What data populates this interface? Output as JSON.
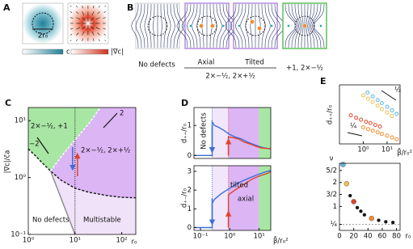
{
  "panel_labels": [
    "A",
    "B",
    "C",
    "D",
    "E"
  ],
  "diagram": {
    "a": {
      "scale_label": "2r₀",
      "colorbar_labels": [
        "c",
        "|∇c|"
      ]
    },
    "b": {
      "labels": [
        "No defects",
        "Axial",
        "Tilted"
      ],
      "group_label": "2×−½, 2×+½",
      "green_label": "+1, 2×−½"
    }
  },
  "chart_data": [
    {
      "type": "line",
      "xscale": "log",
      "yscale": "log",
      "xlim": [
        1,
        200
      ],
      "ylim": [
        0.1,
        17
      ],
      "xticks": [
        {
          "value": 1,
          "label": "10⁰"
        },
        {
          "value": 10,
          "label": "10¹"
        },
        {
          "value": 100,
          "label": "10²"
        }
      ],
      "yticks": [
        {
          "value": 0.1,
          "label": "10⁻¹"
        },
        {
          "value": 1,
          "label": "10⁰"
        },
        {
          "value": 10,
          "label": "10¹"
        }
      ],
      "xlabel": "r₀",
      "ylabel": "|∇c|/c̄a",
      "series": [
        {
          "color": "#111111",
          "dash": "dashed",
          "x": [
            1,
            1.5,
            2,
            3,
            5,
            10,
            20,
            50,
            100,
            200
          ],
          "values": [
            3.2,
            2.3,
            1.8,
            1.3,
            0.9,
            0.65,
            0.55,
            0.48,
            0.45,
            0.44
          ]
        },
        {
          "color": "#ffffff",
          "dash": "dashed",
          "x": [
            3,
            5,
            10,
            20,
            35
          ],
          "values": [
            1.3,
            2.3,
            4.6,
            9,
            17
          ]
        },
        {
          "color": "#888888",
          "dash": "solid",
          "x": [
            3,
            10
          ],
          "values": [
            1.3,
            0.1
          ]
        }
      ],
      "vline": 10,
      "regions": [
        "2×−½, +1",
        "2×−½, 2×+½",
        "No defects",
        "Multistable"
      ],
      "region_colors": [
        "#a8e6a4",
        "#dcb5f5",
        "#ffffff",
        "#efe2f9"
      ],
      "slopes": [
        "2",
        "−2"
      ]
    },
    {
      "type": "line",
      "xscale": "log",
      "xlim": [
        0.06,
        25
      ],
      "ylim": [
        -0.1,
        1.6
      ],
      "yticks": [
        0,
        1
      ],
      "ylabel": "d₊₊/r₀",
      "bands": [
        {
          "from": 0.25,
          "to": 0.9,
          "color": "#f1e6fb"
        },
        {
          "from": 0.9,
          "to": 10,
          "color": "#dcb5f5"
        },
        {
          "from": 10,
          "to": 25,
          "color": "#a8e6a4"
        }
      ],
      "vlines": [
        {
          "value": 0.25,
          "color": "#3a6fd8"
        },
        {
          "value": 0.9,
          "color": "#e0452c"
        }
      ],
      "annotation": "No defects",
      "series": [
        {
          "color": "#3a6fd8",
          "x": [
            0.06,
            0.25,
            0.25,
            0.3,
            0.4,
            0.6,
            1,
            1.5,
            2.5,
            4,
            6,
            10,
            15,
            25
          ],
          "values": [
            0,
            0,
            1.12,
            1.0,
            0.95,
            0.85,
            0.7,
            0.62,
            0.55,
            0.45,
            0.38,
            0.3,
            0.25,
            0.22
          ]
        },
        {
          "color": "#e0452c",
          "x": [
            0.9,
            0.9,
            1.2,
            2,
            3,
            5,
            8,
            12,
            25
          ],
          "values": [
            0,
            0.62,
            0.6,
            0.55,
            0.45,
            0.38,
            0.3,
            0.25,
            0.22
          ]
        }
      ]
    },
    {
      "type": "line",
      "xscale": "log",
      "xlim": [
        0.06,
        25
      ],
      "ylim": [
        -0.15,
        3.3
      ],
      "yticks": [
        0,
        1,
        2,
        3
      ],
      "xticks": [
        {
          "value": 0.1,
          "label": "10⁻¹"
        },
        {
          "value": 1,
          "label": "10⁰"
        },
        {
          "value": 10,
          "label": "10¹"
        }
      ],
      "xlabel": "β̄/r₀²",
      "ylabel": "d₊₋/r₀",
      "bands": [
        {
          "from": 0.25,
          "to": 0.9,
          "color": "#f1e6fb"
        },
        {
          "from": 0.9,
          "to": 10,
          "color": "#dcb5f5"
        },
        {
          "from": 10,
          "to": 25,
          "color": "#a8e6a4"
        }
      ],
      "vlines": [
        {
          "value": 0.25,
          "color": "#3a6fd8"
        },
        {
          "value": 0.9,
          "color": "#e0452c"
        }
      ],
      "series": [
        {
          "name": "tilted",
          "color": "#3a6fd8",
          "x": [
            0.06,
            0.25,
            0.25,
            0.3,
            0.5,
            1,
            2,
            4,
            8,
            15,
            25
          ],
          "values": [
            0,
            0,
            1.3,
            1.5,
            1.8,
            2.1,
            2.4,
            2.6,
            2.8,
            2.95,
            3.05
          ]
        },
        {
          "name": "axial",
          "color": "#e0452c",
          "x": [
            0.9,
            0.9,
            1.5,
            3,
            6,
            10,
            20,
            25
          ],
          "values": [
            0,
            1.75,
            2.0,
            2.3,
            2.6,
            2.75,
            2.9,
            3.0
          ]
        }
      ]
    },
    {
      "type": "scatter",
      "xscale": "log",
      "yscale": "log",
      "xlim": [
        0.1,
        35
      ],
      "ylim": [
        0.03,
        1.5
      ],
      "xticks": [
        {
          "value": 1,
          "label": "10⁰"
        },
        {
          "value": 10,
          "label": "10¹"
        }
      ],
      "xlabel": "β̄/r₀²",
      "ylabel": "d₊₊/r₀",
      "marker": "open",
      "slopes": [
        "½",
        "¼"
      ],
      "series": [
        {
          "color": "#5bb8e6",
          "x": [
            1.5,
            2.5,
            4,
            6,
            10,
            16,
            25
          ],
          "values": [
            0.9,
            0.7,
            0.55,
            0.45,
            0.35,
            0.28,
            0.22
          ]
        },
        {
          "color": "#f2c14e",
          "x": [
            1,
            1.6,
            2.5,
            4,
            6,
            10,
            16
          ],
          "values": [
            0.75,
            0.6,
            0.48,
            0.38,
            0.3,
            0.24,
            0.19
          ]
        },
        {
          "color": "#e0452c",
          "x": [
            0.3,
            0.5,
            0.8,
            1.3,
            2,
            3.2,
            5
          ],
          "values": [
            0.2,
            0.17,
            0.15,
            0.13,
            0.12,
            0.105,
            0.095
          ]
        },
        {
          "color": "#f08c2a",
          "x": [
            1,
            1.6,
            2.5,
            4,
            6,
            10,
            16,
            25
          ],
          "values": [
            0.09,
            0.08,
            0.072,
            0.065,
            0.058,
            0.052,
            0.046,
            0.041
          ]
        }
      ]
    },
    {
      "type": "scatter",
      "xlim": [
        0,
        85
      ],
      "ylim": [
        0,
        2.8
      ],
      "xticks": [
        0,
        20,
        40,
        60,
        80
      ],
      "yticks": [
        {
          "value": 0.25,
          "label": "¼"
        },
        {
          "value": 1,
          "label": "1"
        },
        {
          "value": 1.5,
          "label": "3/2"
        },
        {
          "value": 2,
          "label": "2"
        },
        {
          "value": 2.5,
          "label": "5/2"
        }
      ],
      "xlabel": "r₀",
      "ylabel": "ν",
      "hline": 0.25,
      "marker": "filled",
      "series": [
        {
          "x": [
            5,
            10,
            15,
            20,
            25,
            30,
            35,
            45,
            55,
            65,
            75
          ],
          "values": [
            2.75,
            1.95,
            1.45,
            1.2,
            0.95,
            0.8,
            0.65,
            0.5,
            0.42,
            0.36,
            0.33
          ],
          "colors": [
            "#5bb8e6",
            "#f2c14e",
            "#111111",
            "#e0452c",
            "#111111",
            "#111111",
            "#111111",
            "#f08c2a",
            "#111111",
            "#111111",
            "#111111"
          ]
        }
      ]
    }
  ]
}
